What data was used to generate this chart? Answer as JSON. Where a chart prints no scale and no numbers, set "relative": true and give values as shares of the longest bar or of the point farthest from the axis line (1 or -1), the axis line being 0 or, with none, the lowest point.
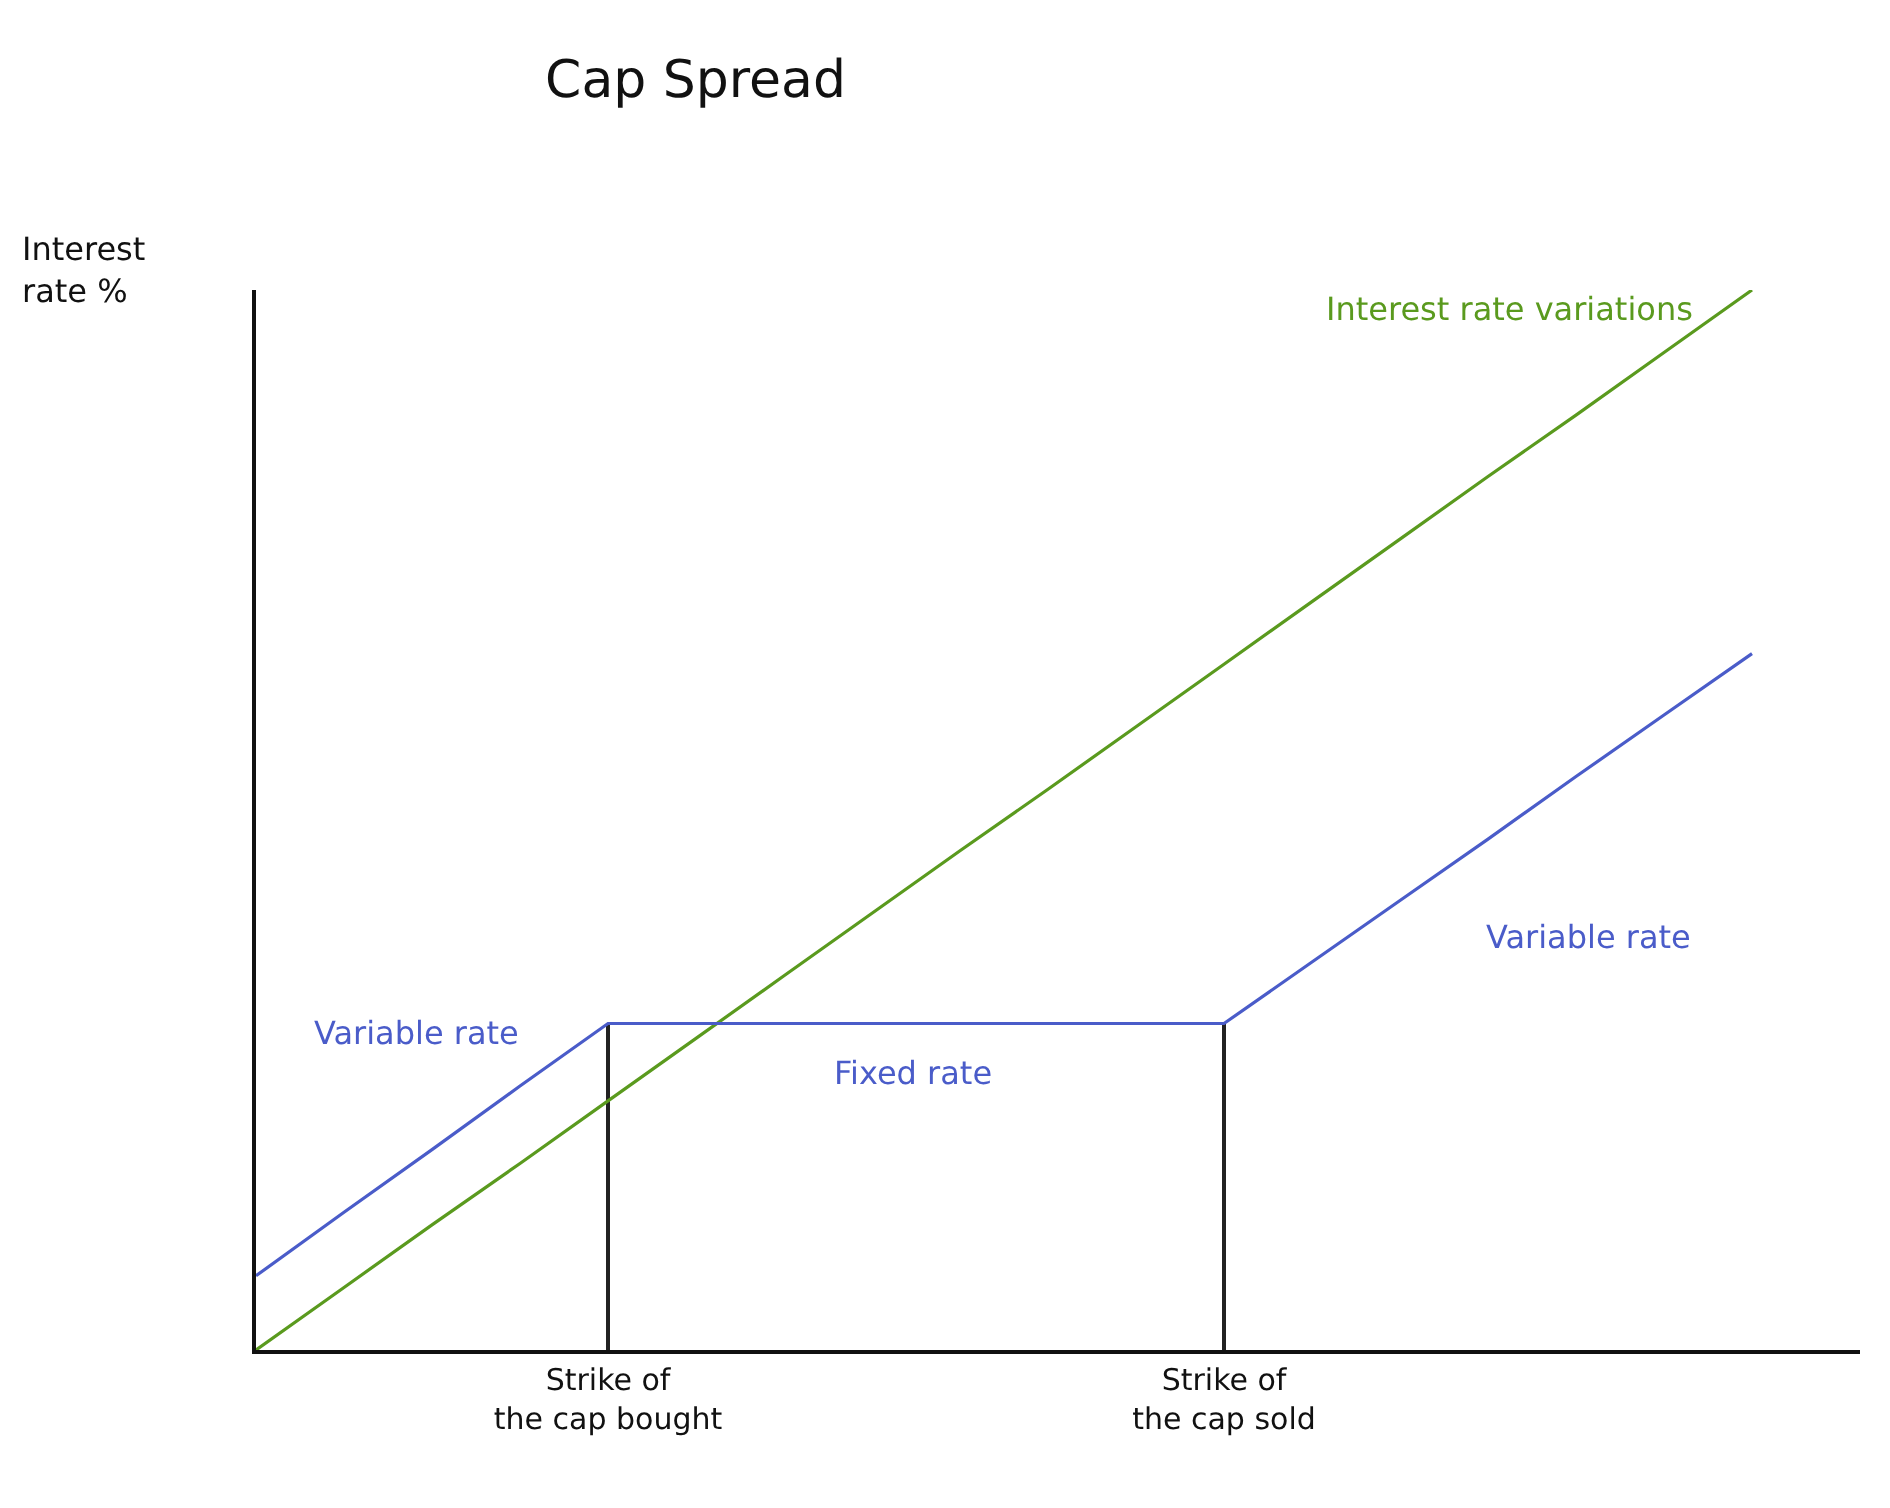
{
  "chart_data": {
    "type": "line",
    "title": "Cap Spread",
    "ylabel": "Interest\nrate %",
    "relative": true,
    "categories": [
      null,
      null,
      null,
      null,
      "Strike of\nthe cap bought",
      null,
      null,
      null,
      null,
      null,
      null,
      "Strike of\nthe cap sold",
      null,
      null,
      null,
      null,
      null,
      null
    ],
    "series": [
      {
        "name": "Interest rate variations",
        "color": "#5a9a1e",
        "values": [
          0,
          0.059,
          0.118,
          0.176,
          0.235,
          0.294,
          0.353,
          0.412,
          0.471,
          0.529,
          0.588,
          0.647,
          0.706,
          0.765,
          0.824,
          0.882,
          0.941,
          1
        ]
      },
      {
        "color": "#4a5cc9",
        "values": [
          0.07,
          0.13,
          0.189,
          0.249,
          0.308,
          0.308,
          0.308,
          0.308,
          0.308,
          0.308,
          0.308,
          0.308,
          0.366,
          0.424,
          0.482,
          0.541,
          0.599,
          0.657
        ]
      },
      {
        "type": "bar",
        "color": "#222222",
        "values": [
          null,
          null,
          null,
          null,
          0.308,
          null,
          null,
          null,
          null,
          null,
          null,
          0.308,
          null,
          null,
          null,
          null,
          null,
          null
        ]
      }
    ],
    "annotations": [
      "Variable rate",
      "Fixed rate",
      "Variable rate"
    ],
    "grid": false,
    "legend": false,
    "marker": "none",
    "line_style": "solid"
  }
}
